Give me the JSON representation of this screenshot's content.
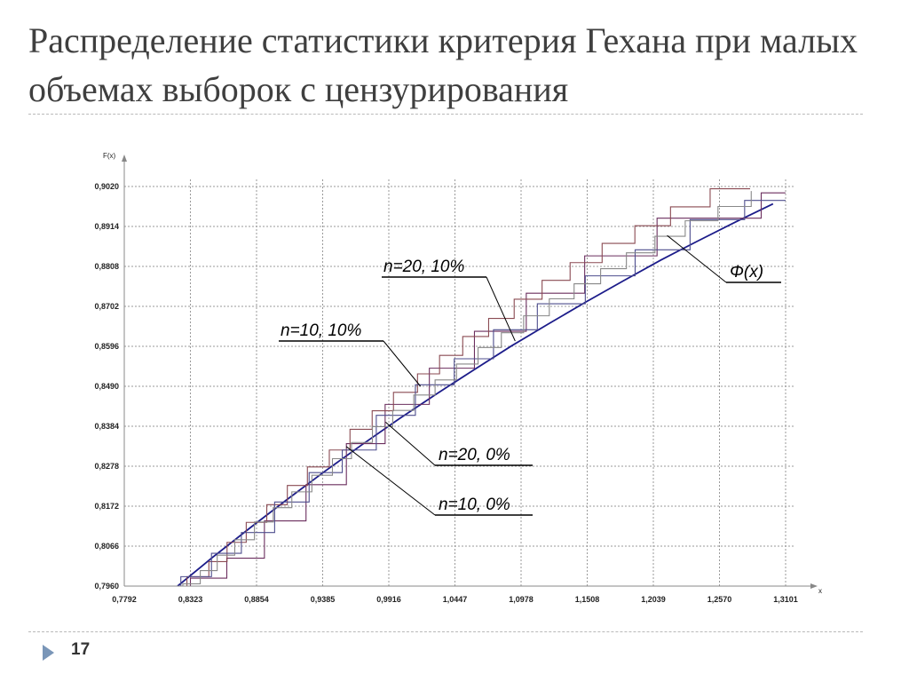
{
  "slide": {
    "title": "Распределение статистики критерия Гехана при малых объемах выборок с цензурирования",
    "page_number": "17"
  },
  "chart_data": {
    "type": "line",
    "xlabel": "x",
    "ylabel": "F(x)",
    "xlim": [
      0.7792,
      1.3101
    ],
    "ylim": [
      0.796,
      0.902
    ],
    "grid": true,
    "x_ticks": [
      "0,7792",
      "0,8323",
      "0,8854",
      "0,9385",
      "0,9916",
      "1,0447",
      "1,0978",
      "1,1508",
      "1,2039",
      "1,2570",
      "1,3101"
    ],
    "y_ticks": [
      "0,7960",
      "0,8066",
      "0,8172",
      "0,8278",
      "0,8384",
      "0,8490",
      "0,8596",
      "0,8702",
      "0,8808",
      "0,8914",
      "0,9020"
    ],
    "series": [
      {
        "name": "Φ(x)",
        "color": "#1c1c8a",
        "style": "smooth",
        "x": [
          0.822,
          0.85,
          0.88,
          0.91,
          0.94,
          0.97,
          1.0,
          1.03,
          1.06,
          1.09,
          1.12,
          1.15,
          1.18,
          1.21,
          1.24,
          1.27,
          1.3
        ],
        "y": [
          0.796,
          0.8036,
          0.8114,
          0.819,
          0.8264,
          0.8335,
          0.8404,
          0.847,
          0.8534,
          0.8597,
          0.8656,
          0.8714,
          0.877,
          0.8825,
          0.8876,
          0.8926,
          0.8974
        ]
      },
      {
        "name": "n=10, 0%",
        "color": "#6b2e5e",
        "style": "step",
        "x": [
          0.8323,
          0.8615,
          0.8917,
          0.9251,
          0.9575,
          0.9886,
          1.0241,
          1.0603,
          1.1019,
          1.1488,
          1.2069,
          1.2905,
          1.31
        ],
        "y": [
          0.7981,
          0.8034,
          0.8133,
          0.8229,
          0.8338,
          0.8442,
          0.8538,
          0.8636,
          0.8737,
          0.8836,
          0.8936,
          0.9003,
          0.9003
        ]
      },
      {
        "name": "n=20, 0%",
        "color": "#8a4a52",
        "style": "step",
        "x": [
          0.8295,
          0.8471,
          0.8617,
          0.8771,
          0.8936,
          0.9101,
          0.9262,
          0.9438,
          0.9604,
          0.9782,
          0.9953,
          1.0146,
          1.0323,
          1.0509,
          1.0717,
          1.0922,
          1.1146,
          1.1371,
          1.1628,
          1.1891,
          1.2177,
          1.2495,
          1.2816
        ],
        "y": [
          0.7985,
          0.8025,
          0.8076,
          0.8129,
          0.8176,
          0.8227,
          0.8276,
          0.8321,
          0.8376,
          0.8425,
          0.8474,
          0.8523,
          0.8572,
          0.8622,
          0.867,
          0.8721,
          0.8771,
          0.8818,
          0.8869,
          0.8916,
          0.8966,
          0.9014,
          0.9014
        ]
      },
      {
        "name": "n=10, 10%",
        "color": "#4e4e8e",
        "style": "step",
        "x": [
          0.8246,
          0.8492,
          0.8732,
          0.8999,
          0.9276,
          0.9542,
          0.9815,
          1.0129,
          1.0441,
          1.0756,
          1.1108,
          1.1493,
          1.1893,
          1.2334,
          1.2772,
          1.3101
        ],
        "y": [
          0.7985,
          0.8047,
          0.8102,
          0.8183,
          0.8261,
          0.8321,
          0.8413,
          0.8494,
          0.8563,
          0.864,
          0.8709,
          0.8783,
          0.8852,
          0.8932,
          0.8983,
          0.8983
        ]
      },
      {
        "name": "n=20, 10%",
        "color": "#888888",
        "style": "step",
        "x": [
          0.8262,
          0.8402,
          0.8538,
          0.8679,
          0.8837,
          0.8988,
          0.9137,
          0.9298,
          0.9463,
          0.9616,
          0.9784,
          0.9947,
          1.0116,
          1.0287,
          1.0459,
          1.0632,
          1.0819,
          1.0998,
          1.1204,
          1.1403,
          1.1616,
          1.1823,
          1.2052,
          1.2295,
          1.2558,
          1.2825
        ],
        "y": [
          0.7966,
          0.8001,
          0.8042,
          0.8083,
          0.813,
          0.8168,
          0.821,
          0.8254,
          0.8298,
          0.8341,
          0.8383,
          0.8426,
          0.8467,
          0.8507,
          0.8549,
          0.8593,
          0.8632,
          0.8677,
          0.8722,
          0.8762,
          0.8802,
          0.8844,
          0.8888,
          0.8929,
          0.8967,
          0.9008
        ]
      }
    ],
    "annotations": [
      {
        "label": "n=20, 10%",
        "target_x": 1.093,
        "target_y": 0.861
      },
      {
        "label": "n=10, 10%",
        "target_x": 1.017,
        "target_y": 0.849
      },
      {
        "label": "Φ(x)",
        "target_x": 1.215,
        "target_y": 0.889
      },
      {
        "label": "n=20, 0%",
        "target_x": 0.989,
        "target_y": 0.8395
      },
      {
        "label": "n=10, 0%",
        "target_x": 0.9575,
        "target_y": 0.833
      }
    ]
  }
}
